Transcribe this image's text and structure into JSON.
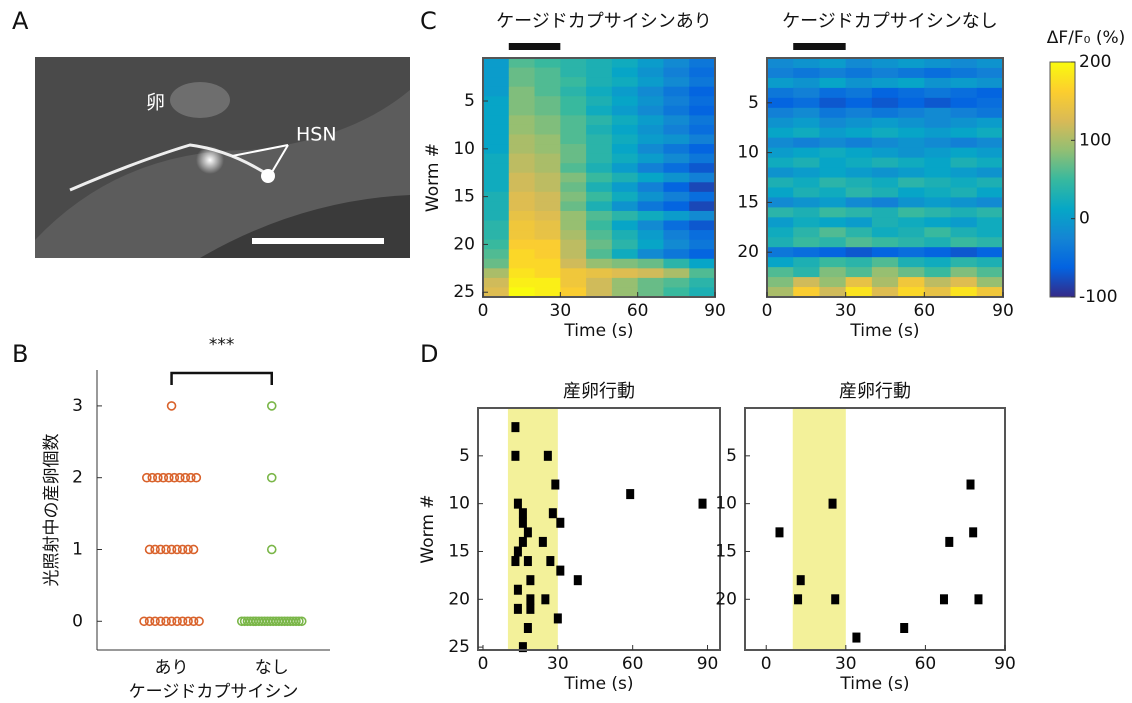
{
  "image": {
    "panel": "A",
    "labels": [
      "卵",
      "HSN"
    ]
  },
  "chart_data": [
    {
      "type": "strip",
      "panel": "B",
      "categories": [
        "あり",
        "なし"
      ],
      "xlabel": "ケージドカプサイシン",
      "ylabel": "光照射中の産卵個数",
      "annotation": "***",
      "ylim": [
        -0.4,
        3.5
      ],
      "yticks": [
        0,
        1,
        2,
        3
      ],
      "groups": [
        {
          "color": "#d9622b",
          "values": [
            3,
            2,
            2,
            2,
            2,
            2,
            2,
            2,
            2,
            2,
            2,
            1,
            1,
            1,
            1,
            1,
            1,
            1,
            1,
            1,
            0,
            0,
            0,
            0,
            0,
            0,
            0,
            0,
            0,
            0,
            0
          ]
        },
        {
          "color": "#7ab648",
          "values": [
            3,
            2,
            1,
            0,
            0,
            0,
            0,
            0,
            0,
            0,
            0,
            0,
            0,
            0,
            0,
            0,
            0,
            0,
            0,
            0,
            0,
            0,
            0,
            0,
            0
          ]
        }
      ]
    },
    {
      "type": "heatmap",
      "panel": "C",
      "title": "ケージドカプサイシンあり",
      "xlabel": "Time (s)",
      "ylabel": "Worm #",
      "stimulus": [
        10,
        30
      ],
      "xlim": [
        0,
        90
      ],
      "xticks": [
        0,
        30,
        60,
        90
      ],
      "ylim": [
        0.5,
        25.5
      ],
      "yticks": [
        5,
        10,
        15,
        20,
        25
      ],
      "x": [
        5,
        15,
        25,
        35,
        45,
        55,
        65,
        75,
        85
      ],
      "y": [
        1,
        2,
        3,
        4,
        5,
        6,
        7,
        8,
        9,
        10,
        11,
        12,
        13,
        14,
        15,
        16,
        17,
        18,
        19,
        20,
        21,
        22,
        23,
        24,
        25
      ],
      "values": [
        [
          0,
          60,
          50,
          40,
          30,
          20,
          0,
          -20,
          -40
        ],
        [
          0,
          70,
          60,
          40,
          30,
          10,
          -10,
          -30,
          -50
        ],
        [
          0,
          70,
          60,
          50,
          30,
          20,
          0,
          -20,
          -40
        ],
        [
          0,
          80,
          60,
          40,
          20,
          0,
          -20,
          -40,
          -60
        ],
        [
          10,
          80,
          70,
          50,
          30,
          10,
          -10,
          -30,
          -50
        ],
        [
          10,
          80,
          70,
          50,
          20,
          0,
          -20,
          -40,
          -60
        ],
        [
          10,
          90,
          80,
          60,
          40,
          20,
          0,
          -20,
          -40
        ],
        [
          10,
          90,
          80,
          60,
          30,
          10,
          -10,
          -30,
          -50
        ],
        [
          10,
          100,
          90,
          60,
          40,
          20,
          0,
          -10,
          -30
        ],
        [
          10,
          100,
          90,
          70,
          40,
          10,
          -20,
          -40,
          -60
        ],
        [
          20,
          110,
          100,
          70,
          40,
          20,
          0,
          -20,
          -40
        ],
        [
          20,
          110,
          100,
          60,
          30,
          0,
          -30,
          -50,
          -70
        ],
        [
          20,
          120,
          110,
          80,
          50,
          30,
          10,
          -10,
          -30
        ],
        [
          20,
          120,
          110,
          70,
          30,
          0,
          -30,
          -60,
          -80
        ],
        [
          30,
          130,
          120,
          80,
          50,
          20,
          -10,
          -30,
          -50
        ],
        [
          30,
          130,
          120,
          70,
          30,
          -10,
          -40,
          -60,
          -80
        ],
        [
          30,
          140,
          130,
          90,
          60,
          40,
          20,
          0,
          -20
        ],
        [
          40,
          150,
          140,
          90,
          50,
          10,
          -20,
          -50,
          -70
        ],
        [
          40,
          150,
          140,
          100,
          60,
          30,
          0,
          -30,
          -50
        ],
        [
          50,
          160,
          160,
          110,
          70,
          40,
          10,
          -20,
          -40
        ],
        [
          60,
          170,
          160,
          110,
          60,
          20,
          -20,
          -40,
          -60
        ],
        [
          70,
          170,
          170,
          120,
          90,
          80,
          70,
          40,
          10
        ],
        [
          100,
          180,
          170,
          150,
          140,
          130,
          120,
          100,
          60
        ],
        [
          120,
          190,
          190,
          150,
          120,
          90,
          70,
          60,
          40
        ],
        [
          130,
          200,
          190,
          160,
          120,
          90,
          70,
          50,
          30
        ]
      ]
    },
    {
      "type": "heatmap",
      "title": "ケージドカプサイシンなし",
      "xlabel": "Time (s)",
      "stimulus": [
        10,
        30
      ],
      "xlim": [
        0,
        90
      ],
      "xticks": [
        0,
        30,
        60,
        90
      ],
      "ylim": [
        0.5,
        24.5
      ],
      "yticks": [
        5,
        10,
        15,
        20
      ],
      "x": [
        5,
        15,
        25,
        35,
        45,
        55,
        65,
        75,
        85
      ],
      "y": [
        1,
        2,
        3,
        4,
        5,
        6,
        7,
        8,
        9,
        10,
        11,
        12,
        13,
        14,
        15,
        16,
        17,
        18,
        19,
        20,
        21,
        22,
        23,
        24
      ],
      "values": [
        [
          -20,
          -10,
          0,
          -20,
          -10,
          0,
          -10,
          -20,
          -10
        ],
        [
          -30,
          -40,
          -30,
          -40,
          -30,
          -40,
          -50,
          -40,
          -30
        ],
        [
          0,
          -10,
          10,
          -10,
          0,
          10,
          -10,
          0,
          -10
        ],
        [
          -40,
          -30,
          -50,
          -40,
          -60,
          -50,
          -40,
          -50,
          -60
        ],
        [
          -60,
          -50,
          -70,
          -60,
          -70,
          -60,
          -70,
          -60,
          -50
        ],
        [
          -30,
          -20,
          -40,
          -30,
          -40,
          -30,
          -20,
          -30,
          -40
        ],
        [
          -10,
          0,
          -20,
          -10,
          0,
          -10,
          -20,
          -10,
          0
        ],
        [
          10,
          20,
          0,
          10,
          20,
          10,
          0,
          10,
          20
        ],
        [
          -20,
          -30,
          -20,
          -30,
          -20,
          -10,
          -20,
          -30,
          -20
        ],
        [
          0,
          10,
          20,
          10,
          0,
          -10,
          0,
          10,
          0
        ],
        [
          20,
          30,
          10,
          20,
          30,
          20,
          10,
          30,
          20
        ],
        [
          -10,
          0,
          10,
          0,
          -10,
          0,
          10,
          0,
          -10
        ],
        [
          30,
          20,
          40,
          30,
          20,
          40,
          30,
          20,
          30
        ],
        [
          10,
          30,
          20,
          40,
          30,
          10,
          20,
          30,
          10
        ],
        [
          -20,
          -10,
          0,
          -20,
          -30,
          -10,
          0,
          -10,
          -20
        ],
        [
          40,
          30,
          50,
          40,
          30,
          50,
          40,
          30,
          40
        ],
        [
          0,
          20,
          10,
          0,
          30,
          20,
          10,
          0,
          20
        ],
        [
          20,
          40,
          60,
          40,
          20,
          30,
          50,
          30,
          20
        ],
        [
          30,
          50,
          40,
          60,
          50,
          40,
          30,
          50,
          40
        ],
        [
          -40,
          -50,
          -60,
          -70,
          -60,
          -50,
          -60,
          -70,
          -60
        ],
        [
          10,
          30,
          50,
          40,
          60,
          30,
          20,
          40,
          30
        ],
        [
          60,
          40,
          80,
          60,
          90,
          70,
          50,
          80,
          60
        ],
        [
          80,
          120,
          90,
          140,
          100,
          150,
          110,
          130,
          90
        ],
        [
          100,
          160,
          120,
          180,
          130,
          170,
          140,
          180,
          150
        ]
      ]
    },
    {
      "type": "colorbar",
      "label": "ΔF/F₀ (%)",
      "colormap": "parula",
      "clim": [
        -100,
        200
      ],
      "cticks": [
        -100,
        0,
        100,
        200
      ]
    },
    {
      "type": "scatter",
      "panel": "D",
      "title": "産卵行動",
      "xlabel": "Time (s)",
      "ylabel": "Worm #",
      "stimulus": [
        10,
        30
      ],
      "shade_color": "#f3f19a",
      "xlim": [
        -2,
        95
      ],
      "xticks": [
        0,
        30,
        60,
        90
      ],
      "ylim": [
        0,
        25.3
      ],
      "yticks": [
        5,
        10,
        15,
        20,
        25
      ],
      "x": [
        13,
        13,
        26,
        29,
        59,
        88,
        14,
        16,
        28,
        16,
        31,
        18,
        16,
        24,
        14,
        13,
        18,
        27,
        31,
        38,
        19,
        14,
        25,
        14,
        19,
        19,
        30,
        18,
        16
      ],
      "y": [
        2,
        5,
        5,
        8,
        9,
        10,
        10,
        11,
        11,
        12,
        12,
        13,
        14,
        14,
        15,
        16,
        16,
        16,
        17,
        18,
        18,
        19,
        20,
        21,
        21,
        20,
        22,
        23,
        25
      ]
    },
    {
      "type": "scatter",
      "title": "産卵行動",
      "xlabel": "Time (s)",
      "stimulus": [
        10,
        30
      ],
      "shade_color": "#f3f19a",
      "xlim": [
        -8,
        90
      ],
      "xticks": [
        0,
        30,
        60,
        90
      ],
      "ylim": [
        0,
        25.3
      ],
      "yticks": [
        5,
        10,
        15,
        20
      ],
      "x": [
        5,
        13,
        12,
        25,
        26,
        34,
        52,
        67,
        69,
        77,
        78,
        80
      ],
      "y": [
        13,
        18,
        20,
        10,
        20,
        24,
        23,
        20,
        14,
        8,
        13,
        20
      ]
    }
  ]
}
